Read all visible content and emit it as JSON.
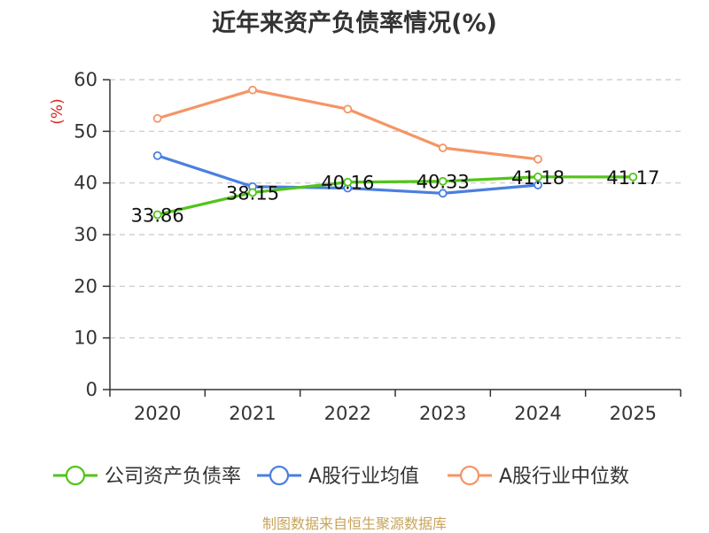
{
  "title": "近年来资产负债率情况(%)",
  "source": "制图数据来自恒生聚源数据库",
  "chart_data": {
    "type": "line",
    "title": "近年来资产负债率情况(%)",
    "ylabel": "(%)",
    "xlabel": "",
    "ylim": [
      0,
      60
    ],
    "yticks": [
      0,
      10,
      20,
      30,
      40,
      50,
      60
    ],
    "categories": [
      "2020",
      "2021",
      "2022",
      "2023",
      "2024",
      "2025"
    ],
    "grid": true,
    "legend_position": "bottom",
    "series": [
      {
        "name": "公司资产负债率",
        "color": "#52c41a",
        "values": [
          33.86,
          38.15,
          40.16,
          40.33,
          41.18,
          41.17
        ],
        "labels": [
          "33.86",
          "38.15",
          "40.16",
          "40.33",
          "41.18",
          "41.17"
        ]
      },
      {
        "name": "A股行业均值",
        "color": "#4a7fe0",
        "values": [
          45.3,
          39.3,
          39.0,
          38.0,
          39.6,
          null
        ],
        "labels": null
      },
      {
        "name": "A股行业中位数",
        "color": "#f59565",
        "values": [
          52.5,
          58.0,
          54.3,
          46.8,
          44.6,
          null
        ],
        "labels": null
      }
    ]
  }
}
